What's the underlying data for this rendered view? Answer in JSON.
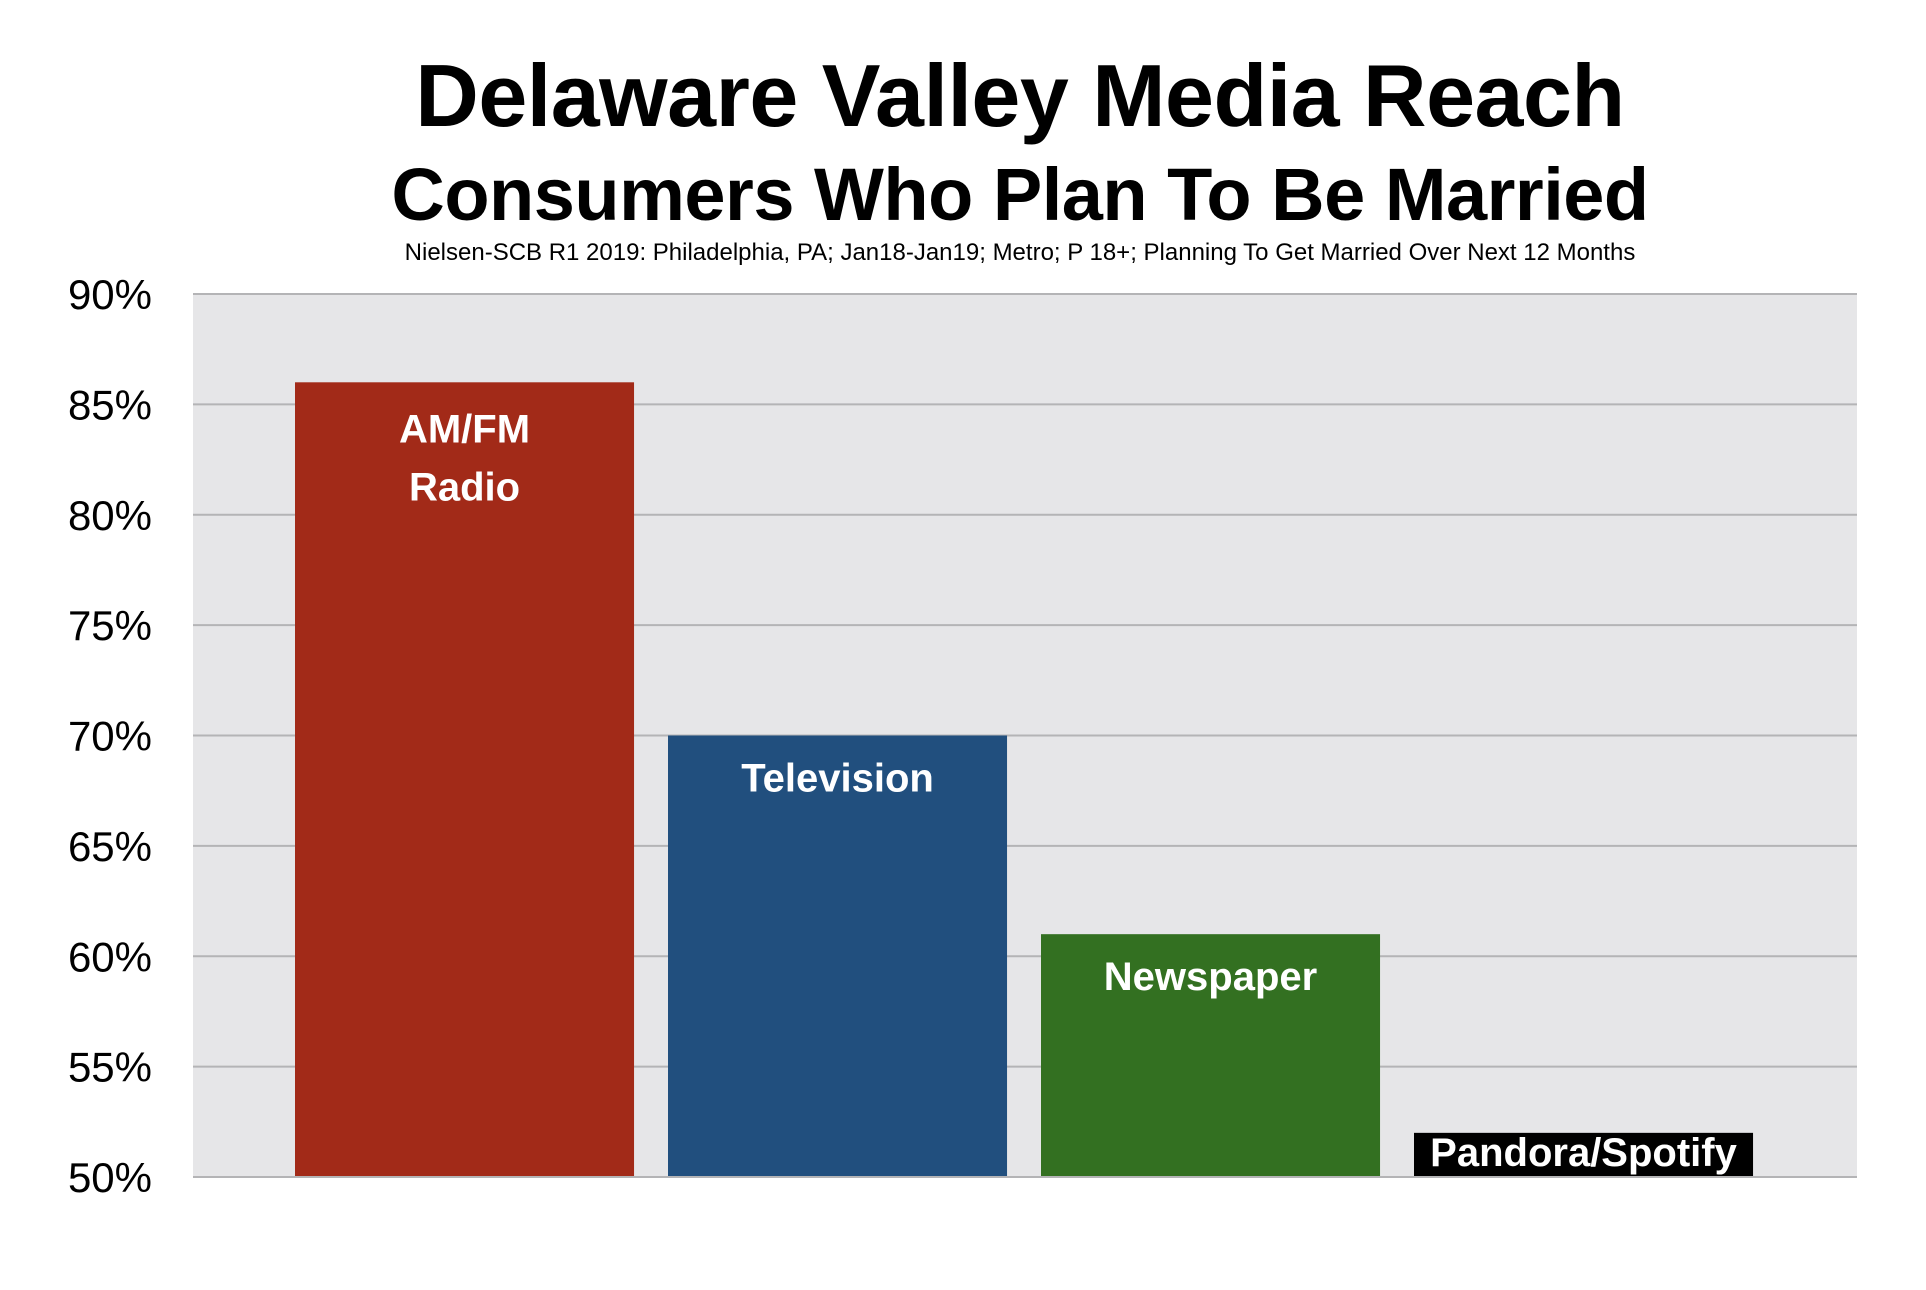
{
  "chart_data": {
    "type": "bar",
    "title": "Delaware Valley Media Reach",
    "subtitle": "Consumers Who Plan To Be Married",
    "source": "Nielsen-SCB R1 2019: Philadelphia, PA; Jan18-Jan19; Metro; P 18+;  Planning To Get Married Over Next 12 Months",
    "categories": [
      "AM/FM Radio",
      "Television",
      "Newspaper",
      "Pandora/Spotify"
    ],
    "bar_labels": [
      [
        "AM/FM",
        "Radio"
      ],
      [
        "Television"
      ],
      [
        "Newspaper"
      ],
      [
        "Pandora/Spotify"
      ]
    ],
    "values": [
      86,
      70,
      61,
      52
    ],
    "colors": [
      "#a22a18",
      "#214f7e",
      "#337021",
      "#000000"
    ],
    "ylim": [
      50,
      90
    ],
    "yticks": [
      50,
      55,
      60,
      65,
      70,
      75,
      80,
      85,
      90
    ],
    "ytick_labels": [
      "50%",
      "55%",
      "60%",
      "65%",
      "70%",
      "75%",
      "80%",
      "85%",
      "90%"
    ],
    "xlabel": "",
    "ylabel": "",
    "grid": true,
    "legend": "none",
    "plot_background": "#e6e6e8"
  }
}
